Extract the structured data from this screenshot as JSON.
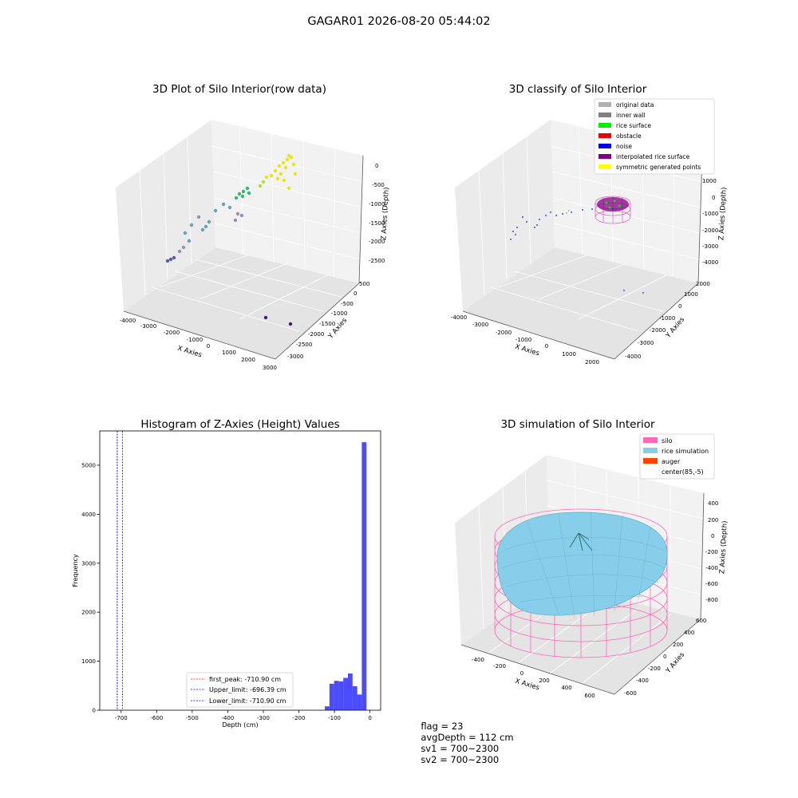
{
  "title": "GAGAR01 2026-08-20 05:44:02",
  "panels": {
    "raw": {
      "title": "3D Plot of Silo Interior(row data)",
      "xlabel": "X Axies",
      "ylabel": "Y Axies",
      "zlabel": "Z Axies (Depth)",
      "x_ticks": [
        "-4000",
        "-3000",
        "-2000",
        "-1000",
        "0",
        "1000",
        "2000",
        "3000"
      ],
      "y_ticks": [
        "500",
        "0",
        "-500",
        "-1000",
        "-1500",
        "-2000",
        "-2500",
        "-3000"
      ],
      "z_ticks": [
        "0",
        "-500",
        "-1000",
        "-1500",
        "-2000",
        "-2500"
      ]
    },
    "classify": {
      "title": "3D classify of Silo Interior",
      "xlabel": "X Axies",
      "ylabel": "Y Axies",
      "zlabel": "Z Axies (Depth)",
      "x_ticks": [
        "-4000",
        "-3000",
        "-2000",
        "-1000",
        "0",
        "1000",
        "2000"
      ],
      "y_ticks": [
        "2000",
        "1000",
        "0",
        "-1000",
        "-2000",
        "-3000",
        "-4000"
      ],
      "z_ticks": [
        "1000",
        "0",
        "-1000",
        "-2000",
        "-3000",
        "-4000"
      ],
      "legend": [
        {
          "label": "original data",
          "color": "#b0b0b0"
        },
        {
          "label": "inner wall",
          "color": "#808080"
        },
        {
          "label": "rice surface",
          "color": "#00ee00"
        },
        {
          "label": "obstacle",
          "color": "#ee0000"
        },
        {
          "label": "noise",
          "color": "#0000ee"
        },
        {
          "label": "interpolated rice surface",
          "color": "#800080"
        },
        {
          "label": "symmetric generated points",
          "color": "#ffff00"
        }
      ]
    },
    "simulation": {
      "title": "3D simulation of Silo Interior",
      "xlabel": "X Axies",
      "ylabel": "Y Axies",
      "zlabel": "Z Axies (Depth)",
      "x_ticks": [
        "-400",
        "-200",
        "0",
        "200",
        "400",
        "600"
      ],
      "y_ticks": [
        "600",
        "400",
        "200",
        "0",
        "-200",
        "-400",
        "-600"
      ],
      "z_ticks": [
        "400",
        "200",
        "0",
        "-200",
        "-400",
        "-600",
        "-800"
      ],
      "legend": [
        {
          "label": "silo",
          "color": "#ff69b4"
        },
        {
          "label": "rice simulation",
          "color": "#87ceeb"
        },
        {
          "label": "auger",
          "color": "#ff4500"
        },
        {
          "label": "center(85,-5)",
          "color": "#ffffff"
        }
      ]
    }
  },
  "chart_data": [
    {
      "type": "bar",
      "title": "Histogram of Z-Axies (Height) Values",
      "xlabel": "Depth (cm)",
      "ylabel": "Frequency",
      "xlim": [
        -760,
        30
      ],
      "ylim": [
        0,
        5700
      ],
      "x_ticks": [
        -700,
        -600,
        -500,
        -400,
        -300,
        -200,
        -100,
        0
      ],
      "y_ticks": [
        0,
        1000,
        2000,
        3000,
        4000,
        5000
      ],
      "bar_color": "#0000ff",
      "bins": [
        {
          "x0": -140,
          "x1": -127,
          "value": 5
        },
        {
          "x0": -127,
          "x1": -114,
          "value": 80
        },
        {
          "x0": -114,
          "x1": -101,
          "value": 540
        },
        {
          "x0": -101,
          "x1": -88,
          "value": 600
        },
        {
          "x0": -88,
          "x1": -75,
          "value": 590
        },
        {
          "x0": -75,
          "x1": -62,
          "value": 660
        },
        {
          "x0": -62,
          "x1": -49,
          "value": 750
        },
        {
          "x0": -49,
          "x1": -36,
          "value": 490
        },
        {
          "x0": -36,
          "x1": -23,
          "value": 320
        },
        {
          "x0": -23,
          "x1": -10,
          "value": 5470
        }
      ],
      "vlines": [
        {
          "label": "first_peak: -710.90 cm",
          "x": -710.9,
          "color": "#ff0000"
        },
        {
          "label": "Upper_limit: -696.39 cm",
          "x": -696.39,
          "color": "#0000cc"
        },
        {
          "label": "Lower_limit: -710.90 cm",
          "x": -710.9,
          "color": "#0000cc"
        }
      ],
      "legend_position": "lower-center"
    }
  ],
  "footer": {
    "flag": "flag = 23",
    "avg": "avgDepth = 112 cm",
    "sv1": "sv1 = 700~2300",
    "sv2": "sv2 = 700~2300"
  }
}
